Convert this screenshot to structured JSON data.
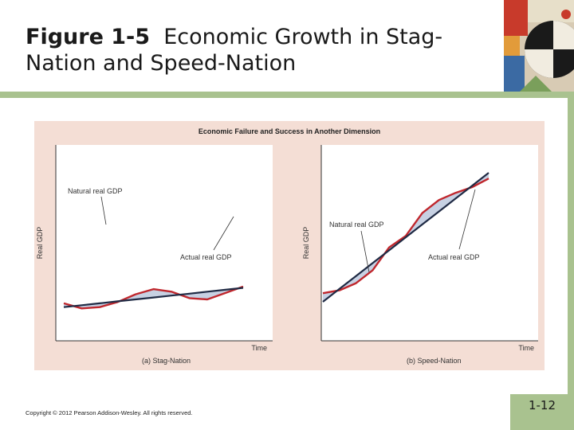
{
  "slide": {
    "title_figure": "Figure 1-5",
    "title_text": "Economic Growth in Stag-Nation and Speed-Nation",
    "copyright": "Copyright © 2012 Pearson Addison-Wesley. All rights reserved.",
    "page_number": "1-12",
    "accent_color": "#a9c28f"
  },
  "figure_header": "Economic Failure and Success in Another Dimension",
  "chart_data": [
    {
      "type": "line",
      "panel_label": "(a) Stag-Nation",
      "xlabel": "Time",
      "ylabel": "Real GDP",
      "annotations": [
        "Natural real GDP",
        "Actual real GDP"
      ],
      "x": [
        0,
        1,
        2,
        3,
        4,
        5,
        6,
        7,
        8,
        9,
        10
      ],
      "series": [
        {
          "name": "Natural real GDP",
          "color": "#1f2a44",
          "values": [
            2.0,
            2.15,
            2.3,
            2.45,
            2.6,
            2.75,
            2.9,
            3.05,
            3.2,
            3.35,
            3.5
          ]
        },
        {
          "name": "Actual real GDP",
          "color": "#c0272d",
          "values": [
            2.3,
            1.9,
            2.0,
            2.4,
            3.0,
            3.4,
            3.2,
            2.7,
            2.6,
            3.1,
            3.6
          ]
        }
      ],
      "gap_fill_color": "#b9c6dc"
    },
    {
      "type": "line",
      "panel_label": "(b) Speed-Nation",
      "xlabel": "Time",
      "ylabel": "Real GDP",
      "annotations": [
        "Natural real GDP",
        "Actual real GDP"
      ],
      "x": [
        0,
        1,
        2,
        3,
        4,
        5,
        6,
        7,
        8,
        9,
        10
      ],
      "series": [
        {
          "name": "Natural real GDP",
          "color": "#1f2a44",
          "values": [
            1.0,
            1.9,
            2.8,
            3.7,
            4.6,
            5.5,
            6.4,
            7.3,
            8.2,
            9.1,
            10.0
          ]
        },
        {
          "name": "Actual real GDP",
          "color": "#c0272d",
          "values": [
            1.6,
            1.8,
            2.3,
            3.2,
            4.8,
            5.6,
            7.2,
            8.1,
            8.6,
            9.0,
            9.6
          ]
        }
      ],
      "gap_fill_color": "#b9c6dc"
    }
  ]
}
